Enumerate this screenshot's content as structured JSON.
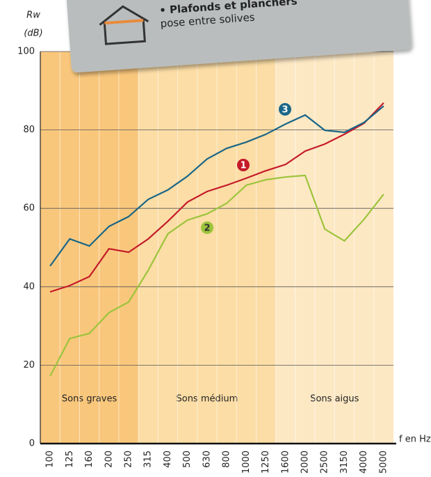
{
  "header": {
    "line1": "• Plafonds et planchers",
    "line2": "pose entre solives"
  },
  "chart_data": {
    "type": "line",
    "ylabel": [
      "Rw",
      "(dB)"
    ],
    "xlabel": "f en Hz",
    "categories": [
      "100",
      "125",
      "160",
      "200",
      "250",
      "315",
      "400",
      "500",
      "630",
      "800",
      "1000",
      "1250",
      "1600",
      "2000",
      "2500",
      "3150",
      "4000",
      "5000"
    ],
    "series": [
      {
        "name": "1",
        "color": "#c41a2a",
        "values": [
          38.7,
          40.3,
          42.6,
          49.7,
          48.8,
          52.2,
          56.7,
          61.6,
          64.3,
          65.9,
          67.7,
          69.6,
          71.2,
          74.6,
          76.4,
          78.9,
          81.7,
          86.9
        ]
      },
      {
        "name": "2",
        "color": "#9cc43c",
        "values": [
          17.2,
          26.8,
          28.1,
          33.4,
          36.1,
          44.2,
          53.5,
          57.0,
          58.6,
          61.3,
          65.9,
          67.3,
          68.0,
          68.4,
          54.7,
          51.7,
          57.2,
          63.6
        ]
      },
      {
        "name": "3",
        "color": "#1a6687",
        "values": [
          45.3,
          52.2,
          50.4,
          55.4,
          57.9,
          62.3,
          64.7,
          68.2,
          72.6,
          75.3,
          76.9,
          78.9,
          81.5,
          83.8,
          79.9,
          79.4,
          81.9,
          86.1
        ]
      }
    ],
    "bands": [
      {
        "label": "Sons graves",
        "from": "100",
        "to": "250",
        "color": "#f9c77c"
      },
      {
        "label": "Sons médium",
        "from": "315",
        "to": "1250",
        "color": "#fcdda5"
      },
      {
        "label": "Sons aigus",
        "from": "1600",
        "to": "5000",
        "color": "#fde8c4"
      }
    ],
    "ylim": [
      0,
      100
    ],
    "yticks": [
      0,
      20,
      40,
      60,
      80,
      100
    ],
    "grid": true
  }
}
